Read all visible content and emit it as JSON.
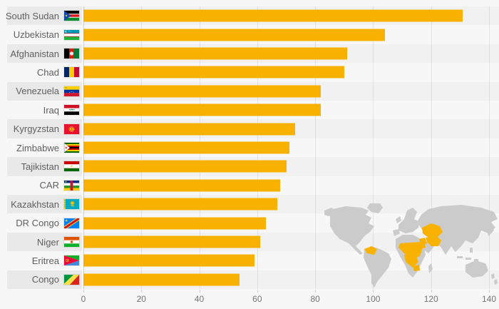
{
  "chart_data": {
    "type": "bar",
    "orientation": "horizontal",
    "title": "",
    "xlabel": "",
    "ylabel": "",
    "categories": [
      "South Sudan",
      "Uzbekistan",
      "Afghanistan",
      "Chad",
      "Venezuela",
      "Iraq",
      "Kyrgyzstan",
      "Zimbabwe",
      "Tajikistan",
      "CAR",
      "Kazakhstan",
      "DR Congo",
      "Niger",
      "Eritrea",
      "Congo"
    ],
    "values": [
      131,
      104,
      91,
      90,
      82,
      82,
      73,
      71,
      70,
      68,
      67,
      63,
      61,
      59,
      54
    ],
    "flag_icons": [
      "flag-south-sudan-icon",
      "flag-uzbekistan-icon",
      "flag-afghanistan-icon",
      "flag-chad-icon",
      "flag-venezuela-icon",
      "flag-iraq-icon",
      "flag-kyrgyzstan-icon",
      "flag-zimbabwe-icon",
      "flag-tajikistan-icon",
      "flag-car-icon",
      "flag-kazakhstan-icon",
      "flag-dr-congo-icon",
      "flag-niger-icon",
      "flag-eritrea-icon",
      "flag-congo-icon"
    ],
    "xlim": [
      0,
      140
    ],
    "x_ticks": [
      0,
      20,
      40,
      60,
      80,
      100,
      120,
      140
    ],
    "grid": true,
    "legend": "none",
    "style": {
      "bar_color": "#f9b100",
      "background": "#f7f7f7",
      "stripe_band_color": "#e9e9ea",
      "gridline_color": "#e4e4e6",
      "zero_line_color": "#c9d3e2",
      "category_label_color": "#5f5f5f",
      "axis_label_color": "#757575",
      "map_land_color": "#cbcbcb",
      "map_highlight_color": "#f9b100"
    },
    "map_inset": {
      "position": "bottom-right",
      "highlighted_countries": [
        "South Sudan",
        "Uzbekistan",
        "Afghanistan",
        "Chad",
        "Venezuela",
        "Iraq",
        "Kyrgyzstan",
        "Zimbabwe",
        "Tajikistan",
        "CAR",
        "Kazakhstan",
        "DR Congo",
        "Niger",
        "Eritrea",
        "Congo"
      ]
    }
  }
}
